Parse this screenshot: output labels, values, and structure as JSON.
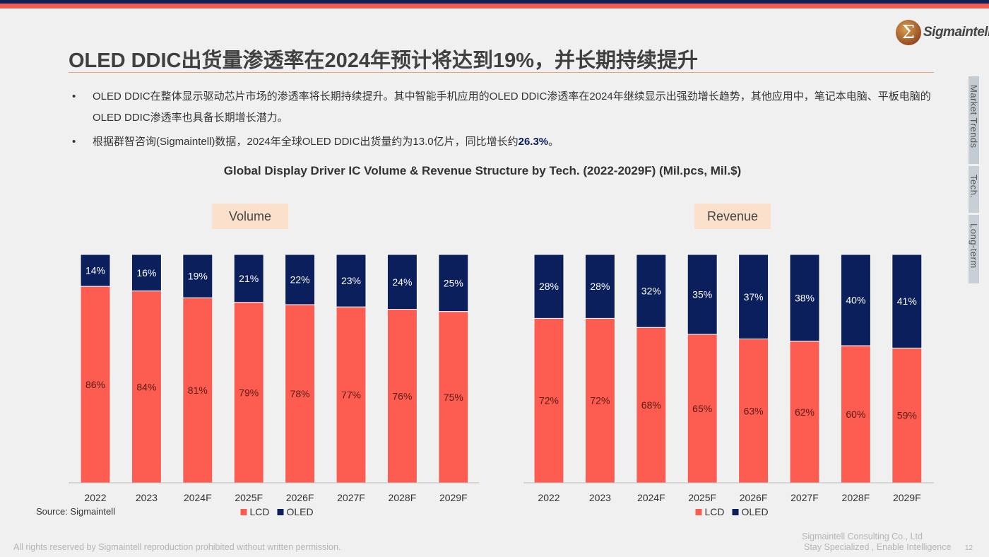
{
  "header": {
    "title": "OLED DDIC出货量渗透率在2024年预计将达到19%，并长期持续提升",
    "logo_text": "Sigmaintell"
  },
  "bullets": [
    {
      "text": "OLED DDIC在整体显示驱动芯片市场的渗透率将长期持续提升。其中智能手机应用的OLED DDIC渗透率在2024年继续显示出强劲增长趋势，其他应用中，笔记本电脑、平板电脑的OLED DDIC渗透率也具备长期增长潜力。"
    },
    {
      "text": "根据群智咨询(Sigmaintell)数据，2024年全球OLED DDIC出货量约为13.0亿片，同比增长约",
      "highlight": "26.3%",
      "suffix": "。"
    }
  ],
  "side_tabs": [
    "Market Trends",
    "Tech.",
    "Long-term"
  ],
  "chart_title": "Global Display Driver IC Volume & Revenue Structure by Tech. (2022-2029F) (Mil.pcs, Mil.$)",
  "colors": {
    "LCD": "#fd5c50",
    "OLED": "#0a1f5c"
  },
  "chart_data": [
    {
      "type": "bar",
      "stacked": true,
      "title": "Volume",
      "categories": [
        "2022",
        "2023",
        "2024F",
        "2025F",
        "2026F",
        "2027F",
        "2028F",
        "2029F"
      ],
      "series": [
        {
          "name": "LCD",
          "values": [
            86,
            84,
            81,
            79,
            78,
            77,
            76,
            75
          ]
        },
        {
          "name": "OLED",
          "values": [
            14,
            16,
            19,
            21,
            22,
            23,
            24,
            25
          ]
        }
      ],
      "legend": "bottom",
      "ylim": [
        0,
        100
      ]
    },
    {
      "type": "bar",
      "stacked": true,
      "title": "Revenue",
      "categories": [
        "2022",
        "2023",
        "2024F",
        "2025F",
        "2026F",
        "2027F",
        "2028F",
        "2029F"
      ],
      "series": [
        {
          "name": "LCD",
          "values": [
            72,
            72,
            68,
            65,
            63,
            62,
            60,
            59
          ]
        },
        {
          "name": "OLED",
          "values": [
            28,
            28,
            32,
            35,
            37,
            38,
            40,
            41
          ]
        }
      ],
      "legend": "bottom",
      "ylim": [
        0,
        100
      ]
    }
  ],
  "source": "Source: Sigmaintell",
  "footer": {
    "rights": "All rights reserved by Sigmaintell reproduction prohibited without written permission.",
    "company": "Sigmaintell Consulting Co., Ltd",
    "slogan": "Stay Specialized , Enable Intelligence",
    "page": "12"
  }
}
